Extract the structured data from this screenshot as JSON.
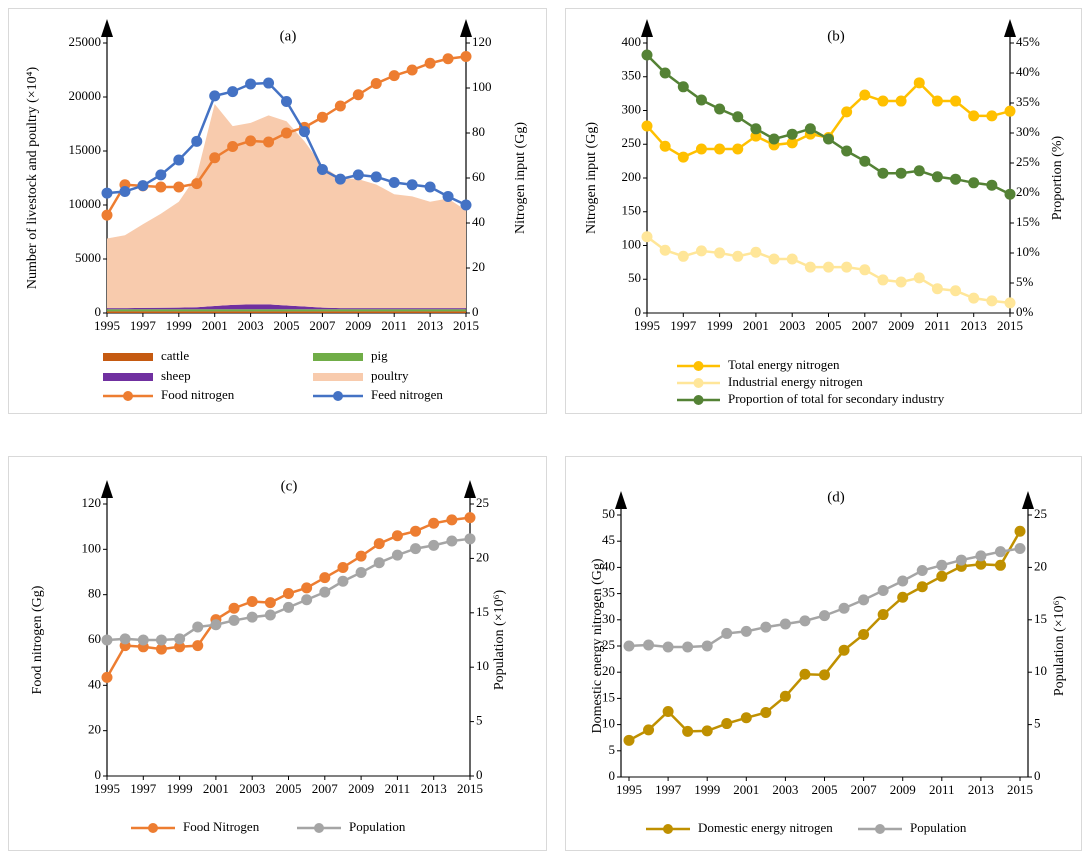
{
  "chart_data": [
    {
      "type": "combo",
      "title": "(a)",
      "y_label": "Number of livestock and poultry (×10⁴)",
      "y2_label": "Nitrogen input (Gg)",
      "x": [
        1995,
        1996,
        1997,
        1998,
        1999,
        2000,
        2001,
        2002,
        2003,
        2004,
        2005,
        2006,
        2007,
        2008,
        2009,
        2010,
        2011,
        2012,
        2013,
        2014,
        2015
      ],
      "xlim": [
        1995,
        2015
      ],
      "xticks": [
        1995,
        1997,
        1999,
        2001,
        2003,
        2005,
        2007,
        2009,
        2011,
        2013,
        2015
      ],
      "ylim": [
        0,
        25000
      ],
      "yticks": [
        0,
        5000,
        10000,
        15000,
        20000,
        25000
      ],
      "y2lim": [
        0,
        120
      ],
      "y2ticks": [
        0,
        20,
        40,
        60,
        80,
        100,
        120
      ],
      "series": [
        {
          "name": "cattle",
          "color": "#c55a11",
          "mark": "area",
          "values": [
            150,
            150,
            150,
            150,
            150,
            150,
            150,
            150,
            150,
            150,
            150,
            150,
            150,
            150,
            150,
            150,
            150,
            150,
            150,
            150,
            150
          ]
        },
        {
          "name": "pig",
          "color": "#70ad47",
          "mark": "area",
          "values": [
            200,
            200,
            200,
            200,
            200,
            200,
            200,
            200,
            200,
            200,
            200,
            200,
            200,
            200,
            200,
            200,
            200,
            200,
            200,
            200,
            200
          ]
        },
        {
          "name": "sheep",
          "color": "#7030a0",
          "mark": "area",
          "values": [
            100,
            100,
            120,
            140,
            150,
            180,
            300,
            400,
            450,
            450,
            350,
            250,
            150,
            100,
            100,
            100,
            100,
            100,
            100,
            100,
            100
          ]
        },
        {
          "name": "poultry",
          "color": "#f8cbad",
          "mark": "area",
          "values": [
            6450,
            6750,
            7750,
            8700,
            9800,
            12200,
            18700,
            16550,
            16800,
            17500,
            17050,
            15300,
            13100,
            12050,
            11950,
            11450,
            10550,
            10350,
            9850,
            10150,
            9050
          ]
        },
        {
          "name": "Food nitrogen",
          "color": "#ed7d31",
          "mark": "line",
          "axis": "y2",
          "values": [
            43.5,
            57,
            56.5,
            56,
            56,
            57.5,
            69,
            74,
            76.5,
            76,
            80,
            82.5,
            87,
            92,
            97,
            102,
            105.5,
            108,
            111,
            113,
            114
          ]
        },
        {
          "name": "Feed nitrogen",
          "color": "#4472c4",
          "mark": "line",
          "axis": "y2",
          "values": [
            53.3,
            54,
            56.6,
            61.4,
            68,
            76.3,
            96.5,
            98.4,
            101.8,
            102.2,
            94,
            80.6,
            63.8,
            59.5,
            61.4,
            60.5,
            58,
            57,
            56,
            51.8,
            48
          ]
        }
      ]
    },
    {
      "type": "line",
      "title": "(b)",
      "y_label": "Nitrogen input (Gg)",
      "y2_label": "Proportion (%)",
      "x": [
        1995,
        1996,
        1997,
        1998,
        1999,
        2000,
        2001,
        2002,
        2003,
        2004,
        2005,
        2006,
        2007,
        2008,
        2009,
        2010,
        2011,
        2012,
        2013,
        2014,
        2015
      ],
      "xlim": [
        1995,
        2015
      ],
      "xticks": [
        1995,
        1997,
        1999,
        2001,
        2003,
        2005,
        2007,
        2009,
        2011,
        2013,
        2015
      ],
      "ylim": [
        0,
        400
      ],
      "yticks": [
        0,
        50,
        100,
        150,
        200,
        250,
        300,
        350,
        400
      ],
      "y2lim": [
        0,
        45
      ],
      "y2ticks": [
        {
          "value": 0,
          "label": "0%"
        },
        {
          "value": 5,
          "label": "5%"
        },
        {
          "value": 10,
          "label": "10%"
        },
        {
          "value": 15,
          "label": "15%"
        },
        {
          "value": 20,
          "label": "20%"
        },
        {
          "value": 25,
          "label": "25%"
        },
        {
          "value": 30,
          "label": "30%"
        },
        {
          "value": 35,
          "label": "35%"
        },
        {
          "value": 40,
          "label": "40%"
        },
        {
          "value": 45,
          "label": "45%"
        }
      ],
      "series": [
        {
          "name": "Total energy nitrogen",
          "color": "#ffc000",
          "values": [
            277,
            247,
            231,
            243,
            243,
            243,
            262,
            249,
            252,
            265,
            260,
            298,
            323,
            314,
            314,
            341,
            314,
            314,
            292,
            292,
            299
          ]
        },
        {
          "name": "Industrial energy nitrogen",
          "color": "#ffe699",
          "values": [
            113,
            93,
            84,
            92,
            89,
            84,
            90,
            80,
            80,
            68,
            68,
            68,
            64,
            49,
            46,
            52,
            36,
            33,
            22,
            18,
            15
          ]
        },
        {
          "name": "Proportion of total for secondary industry",
          "color": "#548235",
          "axis": "y2",
          "values": [
            43,
            40,
            37.7,
            35.5,
            34,
            32.7,
            30.7,
            29,
            29.8,
            30.7,
            29,
            27,
            25.3,
            23.3,
            23.3,
            23.7,
            22.7,
            22.3,
            21.7,
            21.3,
            19.8
          ]
        }
      ]
    },
    {
      "type": "line",
      "title": "(c)",
      "y_label": "Food nitrogen (Gg)",
      "y2_label": "Population (×10⁶)",
      "x": [
        1995,
        1996,
        1997,
        1998,
        1999,
        2000,
        2001,
        2002,
        2003,
        2004,
        2005,
        2006,
        2007,
        2008,
        2009,
        2010,
        2011,
        2012,
        2013,
        2014,
        2015
      ],
      "xlim": [
        1995,
        2015
      ],
      "xticks": [
        1995,
        1997,
        1999,
        2001,
        2003,
        2005,
        2007,
        2009,
        2011,
        2013,
        2015
      ],
      "ylim": [
        0,
        120
      ],
      "yticks": [
        0,
        20,
        40,
        60,
        80,
        100,
        120
      ],
      "y2lim": [
        0,
        25
      ],
      "y2ticks": [
        0,
        5,
        10,
        15,
        20,
        25
      ],
      "series": [
        {
          "name": "Food Nitrogen",
          "color": "#ed7d31",
          "values": [
            43.5,
            57.5,
            57,
            56,
            57,
            57.5,
            69,
            74,
            77,
            76.5,
            80.5,
            83,
            87.5,
            92,
            97,
            102.5,
            106,
            108,
            111.5,
            113,
            114
          ]
        },
        {
          "name": "Population",
          "color": "#a5a5a5",
          "axis": "y2",
          "values": [
            12.5,
            12.6,
            12.5,
            12.5,
            12.6,
            13.7,
            13.9,
            14.3,
            14.6,
            14.8,
            15.5,
            16.2,
            16.9,
            17.9,
            18.7,
            19.6,
            20.3,
            20.9,
            21.2,
            21.6,
            21.8
          ]
        }
      ]
    },
    {
      "type": "line",
      "title": "(d)",
      "y_label": "Domestic energy nitrogen (Gg)",
      "y2_label": "Population (×10⁶)",
      "x": [
        1995,
        1996,
        1997,
        1998,
        1999,
        2000,
        2001,
        2002,
        2003,
        2004,
        2005,
        2006,
        2007,
        2008,
        2009,
        2010,
        2011,
        2012,
        2013,
        2014,
        2015
      ],
      "xlim": [
        1995,
        2015
      ],
      "xticks": [
        1995,
        1997,
        1999,
        2001,
        2003,
        2005,
        2007,
        2009,
        2011,
        2013,
        2015
      ],
      "ylim": [
        0,
        50
      ],
      "yticks": [
        0,
        5,
        10,
        15,
        20,
        25,
        30,
        35,
        40,
        45,
        50
      ],
      "y2lim": [
        0,
        25
      ],
      "y2ticks": [
        0,
        5,
        10,
        15,
        20,
        25
      ],
      "series": [
        {
          "name": "Domestic energy nitrogen",
          "color": "#bf9000",
          "values": [
            7,
            9,
            12.5,
            8.7,
            8.8,
            10.2,
            11.3,
            12.3,
            15.4,
            19.6,
            19.5,
            24.2,
            27.2,
            31,
            34.3,
            36.3,
            38.3,
            40.2,
            40.6,
            40.4,
            46.9
          ]
        },
        {
          "name": "Population",
          "color": "#a5a5a5",
          "axis": "y2",
          "values": [
            12.5,
            12.6,
            12.4,
            12.4,
            12.5,
            13.7,
            13.9,
            14.3,
            14.6,
            14.9,
            15.4,
            16.1,
            16.9,
            17.8,
            18.7,
            19.7,
            20.2,
            20.7,
            21.1,
            21.5,
            21.8
          ]
        }
      ]
    }
  ]
}
